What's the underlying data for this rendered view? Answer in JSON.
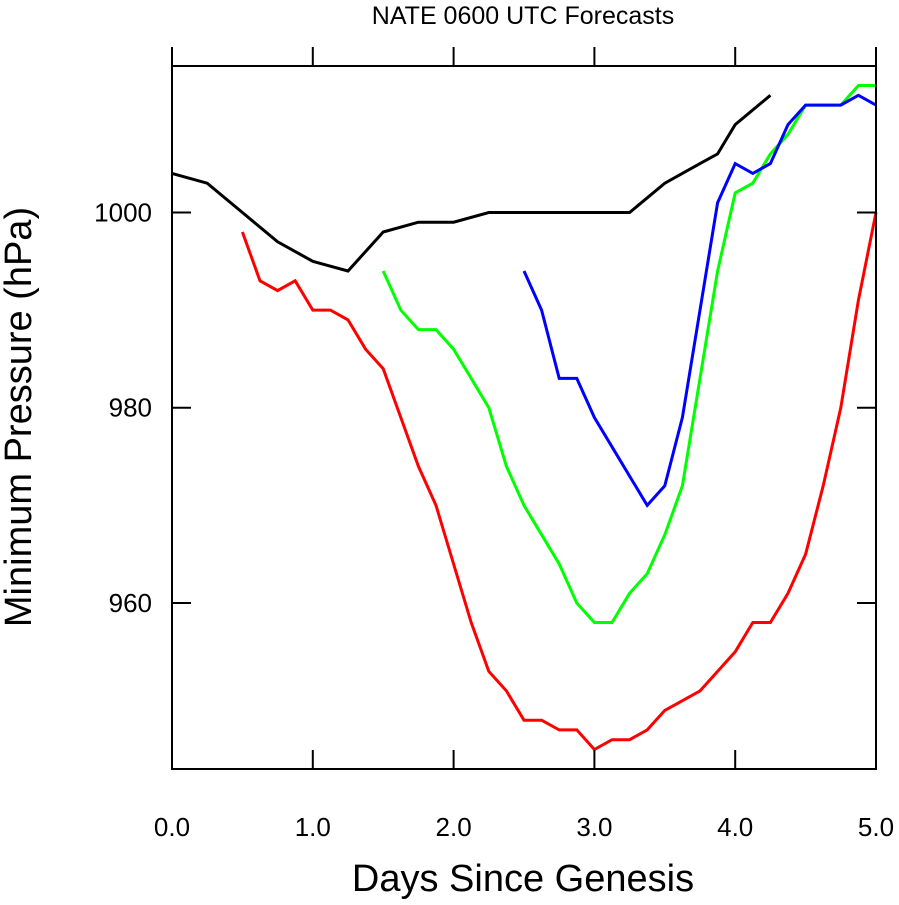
{
  "chart_data": {
    "type": "line",
    "title": "NATE 0600 UTC Forecasts",
    "xlabel": "Days Since Genesis",
    "ylabel": "Minimum Pressure (hPa)",
    "xlim": [
      0.0,
      5.0
    ],
    "ylim": [
      943,
      1015
    ],
    "x_ticks": [
      0.0,
      1.0,
      2.0,
      3.0,
      4.0,
      5.0
    ],
    "x_tick_labels": [
      "0.0",
      "1.0",
      "2.0",
      "3.0",
      "4.0",
      "5.0"
    ],
    "y_ticks": [
      960,
      980,
      1000
    ],
    "y_tick_labels": [
      "960",
      "980",
      "1000"
    ],
    "grid": false,
    "series": [
      {
        "color": "#000000",
        "x": [
          0.0,
          0.25,
          0.5,
          0.75,
          1.0,
          1.125,
          1.25,
          1.5,
          1.75,
          2.0,
          2.25,
          2.5,
          2.75,
          3.0,
          3.25,
          3.5,
          3.75,
          3.875,
          4.0,
          4.25
        ],
        "y": [
          1004,
          1003,
          1000,
          997,
          995,
          994.5,
          994,
          998,
          999,
          999,
          1000,
          1000,
          1000,
          1000,
          1000,
          1003,
          1005,
          1006,
          1009,
          1012
        ]
      },
      {
        "color": "#ff0000",
        "x": [
          0.5,
          0.625,
          0.75,
          0.875,
          1.0,
          1.125,
          1.25,
          1.375,
          1.5,
          1.625,
          1.75,
          1.875,
          2.0,
          2.125,
          2.25,
          2.375,
          2.5,
          2.625,
          2.75,
          2.875,
          3.0,
          3.125,
          3.25,
          3.375,
          3.5,
          3.625,
          3.75,
          3.875,
          4.0,
          4.125,
          4.25,
          4.375,
          4.5,
          4.625,
          4.75,
          4.875,
          5.0
        ],
        "y": [
          998,
          993,
          992,
          993,
          990,
          990,
          989,
          986,
          984,
          979,
          974,
          970,
          964,
          958,
          953,
          951,
          948,
          948,
          947,
          947,
          945,
          946,
          946,
          947,
          949,
          950,
          951,
          953,
          955,
          958,
          958,
          961,
          965,
          972,
          980,
          991,
          1000
        ]
      },
      {
        "color": "#00ff00",
        "x": [
          1.5,
          1.625,
          1.75,
          1.875,
          2.0,
          2.125,
          2.25,
          2.375,
          2.5,
          2.625,
          2.75,
          2.875,
          3.0,
          3.125,
          3.25,
          3.375,
          3.5,
          3.625,
          3.75,
          3.875,
          4.0,
          4.125,
          4.25,
          4.375,
          4.5,
          4.625,
          4.75,
          4.875,
          5.0
        ],
        "y": [
          994,
          990,
          988,
          988,
          986,
          983,
          980,
          974,
          970,
          967,
          964,
          960,
          958,
          958,
          961,
          963,
          967,
          972,
          983,
          994,
          1002,
          1003,
          1006,
          1008,
          1011,
          1011,
          1011,
          1013,
          1013
        ]
      },
      {
        "color": "#0000ff",
        "x": [
          2.5,
          2.625,
          2.75,
          2.875,
          3.0,
          3.125,
          3.25,
          3.375,
          3.5,
          3.625,
          3.75,
          3.875,
          4.0,
          4.125,
          4.25,
          4.375,
          4.5,
          4.625,
          4.75,
          4.875,
          5.0
        ],
        "y": [
          994,
          990,
          983,
          983,
          979,
          976,
          973,
          970,
          972,
          979,
          990,
          1001,
          1005,
          1004,
          1005,
          1009,
          1011,
          1011,
          1011,
          1012,
          1011
        ]
      }
    ]
  }
}
